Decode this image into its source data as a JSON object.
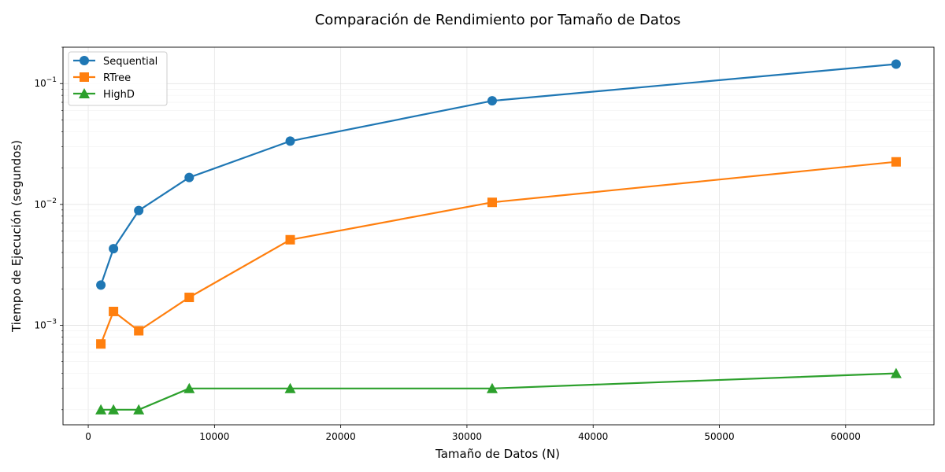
{
  "chart_data": {
    "type": "line",
    "title": "Comparación de Rendimiento por Tamaño de Datos",
    "xlabel": "Tamaño de Datos (N)",
    "ylabel": "Tiempo de Ejecución (segundos)",
    "x": [
      1000,
      2000,
      4000,
      8000,
      16000,
      32000,
      64000
    ],
    "xlim": [
      -2000,
      67000
    ],
    "ylim": [
      0.00015,
      0.2
    ],
    "yscale": "log",
    "grid": true,
    "legend_position": "top-left",
    "xticks": [
      0,
      10000,
      20000,
      30000,
      40000,
      50000,
      60000
    ],
    "xtick_labels": [
      "0",
      "10000",
      "20000",
      "30000",
      "40000",
      "50000",
      "60000"
    ],
    "yticks": [
      0.001,
      0.01,
      0.1
    ],
    "ytick_labels": [
      {
        "base": "10",
        "exp": "−3"
      },
      {
        "base": "10",
        "exp": "−2"
      },
      {
        "base": "10",
        "exp": "−1"
      }
    ],
    "series": [
      {
        "name": "Sequential",
        "color": "#1f77b4",
        "marker": "circle",
        "values": [
          0.00215,
          0.0043,
          0.0089,
          0.0167,
          0.0334,
          0.072,
          0.145
        ]
      },
      {
        "name": "RTree",
        "color": "#ff7f0e",
        "marker": "square",
        "values": [
          0.0007,
          0.0013,
          0.0009,
          0.0017,
          0.0051,
          0.0104,
          0.0225
        ]
      },
      {
        "name": "HighD",
        "color": "#2ca02c",
        "marker": "triangle",
        "values": [
          0.0002,
          0.0002,
          0.0002,
          0.0003,
          0.0003,
          0.0003,
          0.0004
        ]
      }
    ]
  }
}
